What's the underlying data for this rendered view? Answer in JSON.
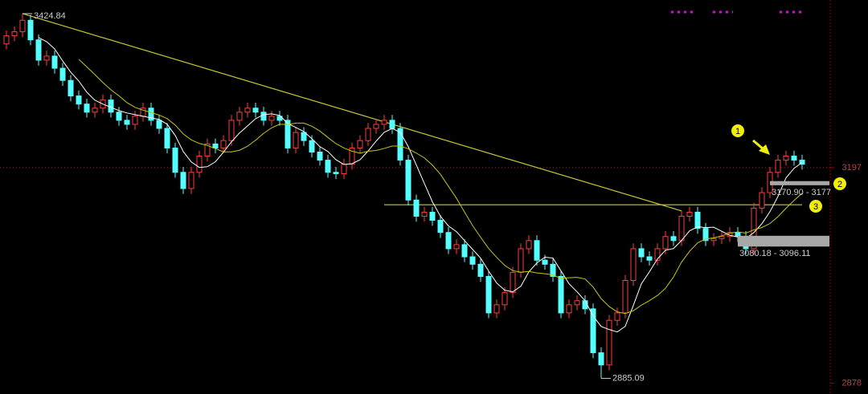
{
  "chart_data": {
    "type": "candlestick",
    "up_color": "#ff3c3c",
    "down_color": "#54ffff",
    "ylim": [
      2862,
      3445
    ],
    "yticks": [
      3197,
      2878
    ],
    "reference_line": 3197,
    "open": [
      3380,
      3392,
      3398,
      3415,
      3386,
      3356,
      3362,
      3344,
      3326,
      3303,
      3291,
      3279,
      3285,
      3297,
      3279,
      3267,
      3261,
      3273,
      3285,
      3267,
      3255,
      3226,
      3190,
      3166,
      3190,
      3214,
      3232,
      3226,
      3237,
      3267,
      3279,
      3285,
      3279,
      3267,
      3273,
      3267,
      3226,
      3249,
      3237,
      3220,
      3208,
      3190,
      3188,
      3202,
      3226,
      3237,
      3255,
      3261,
      3267,
      3255,
      3208,
      3149,
      3125,
      3131,
      3119,
      3101,
      3077,
      3083,
      3065,
      3054,
      3036,
      2982,
      2994,
      3012,
      3042,
      3077,
      3089,
      3060,
      3054,
      3036,
      2982,
      2994,
      3000,
      2988,
      2923,
      2905,
      2971,
      2982,
      3030,
      3077,
      3065,
      3060,
      3077,
      3095,
      3089,
      3125,
      3131,
      3107,
      3089,
      3092,
      3095,
      3101,
      3095,
      3077,
      3137,
      3160,
      3190,
      3208,
      3214,
      3208
    ],
    "high": [
      3400,
      3406,
      3424.84,
      3423,
      3394,
      3370,
      3370,
      3352,
      3334,
      3311,
      3299,
      3293,
      3305,
      3305,
      3287,
      3275,
      3281,
      3293,
      3293,
      3275,
      3263,
      3234,
      3198,
      3198,
      3222,
      3240,
      3240,
      3245,
      3275,
      3287,
      3293,
      3293,
      3287,
      3281,
      3281,
      3275,
      3257,
      3257,
      3245,
      3228,
      3216,
      3198,
      3210,
      3234,
      3245,
      3263,
      3269,
      3275,
      3275,
      3263,
      3216,
      3157,
      3139,
      3139,
      3127,
      3109,
      3091,
      3091,
      3073,
      3062,
      3044,
      3002,
      3020,
      3050,
      3085,
      3097,
      3097,
      3068,
      3062,
      3044,
      3002,
      3008,
      3008,
      2996,
      2931,
      2979,
      2990,
      3038,
      3085,
      3085,
      3073,
      3085,
      3103,
      3103,
      3133,
      3139,
      3139,
      3115,
      3100,
      3103,
      3109,
      3109,
      3103,
      3145,
      3168,
      3198,
      3216,
      3222,
      3222,
      3216
    ],
    "low": [
      3372,
      3384,
      3390,
      3378,
      3348,
      3348,
      3336,
      3318,
      3295,
      3283,
      3271,
      3271,
      3277,
      3271,
      3259,
      3253,
      3253,
      3265,
      3259,
      3247,
      3218,
      3182,
      3158,
      3158,
      3182,
      3206,
      3218,
      3218,
      3229,
      3259,
      3271,
      3271,
      3259,
      3259,
      3259,
      3218,
      3218,
      3229,
      3212,
      3200,
      3182,
      3180,
      3180,
      3194,
      3218,
      3229,
      3247,
      3253,
      3247,
      3200,
      3141,
      3117,
      3117,
      3111,
      3093,
      3069,
      3069,
      3057,
      3046,
      3028,
      2974,
      2974,
      2986,
      3004,
      3034,
      3069,
      3052,
      3046,
      3028,
      2974,
      2974,
      2986,
      2980,
      2915,
      2885.09,
      2897,
      2963,
      2974,
      3022,
      3057,
      3052,
      3052,
      3069,
      3081,
      3081,
      3117,
      3099,
      3081,
      3081,
      3084,
      3087,
      3087,
      3069,
      3069,
      3129,
      3152,
      3182,
      3200,
      3200,
      3194
    ],
    "close": [
      3392,
      3398,
      3415,
      3386,
      3356,
      3362,
      3344,
      3326,
      3303,
      3291,
      3279,
      3285,
      3297,
      3279,
      3267,
      3261,
      3273,
      3285,
      3267,
      3255,
      3226,
      3190,
      3166,
      3190,
      3214,
      3232,
      3226,
      3237,
      3267,
      3279,
      3285,
      3279,
      3267,
      3273,
      3267,
      3226,
      3249,
      3237,
      3220,
      3208,
      3190,
      3188,
      3202,
      3226,
      3237,
      3255,
      3261,
      3267,
      3255,
      3208,
      3149,
      3125,
      3131,
      3119,
      3101,
      3077,
      3083,
      3065,
      3054,
      3036,
      2982,
      2994,
      3012,
      3042,
      3077,
      3089,
      3060,
      3054,
      3036,
      2982,
      2994,
      3000,
      2988,
      2923,
      2905,
      2971,
      2982,
      3030,
      3077,
      3065,
      3060,
      3077,
      3095,
      3089,
      3125,
      3131,
      3107,
      3089,
      3092,
      3095,
      3101,
      3095,
      3077,
      3137,
      3160,
      3190,
      3208,
      3214,
      3208,
      3202
    ],
    "ma": [
      {
        "period": 5,
        "color": "#ffffff"
      },
      {
        "period": 10,
        "color": "#c8c800"
      }
    ],
    "high_label": "3424.84",
    "low_label": "2885.09",
    "trendline": {
      "from": [
        2,
        3424.84
      ],
      "to": [
        84,
        3133
      ],
      "color": "#c8c832"
    },
    "level": {
      "value": 3142,
      "from": 47,
      "to": 99,
      "color": "#c8c832"
    },
    "zones": [
      {
        "label": "3170.90 - 3177",
        "low": 3170.9,
        "high": 3177,
        "from": 95
      },
      {
        "label": "3080.18 - 3096.11",
        "low": 3080.18,
        "high": 3096.11,
        "from": 91
      }
    ],
    "markers": [
      "1",
      "2",
      "3"
    ]
  }
}
